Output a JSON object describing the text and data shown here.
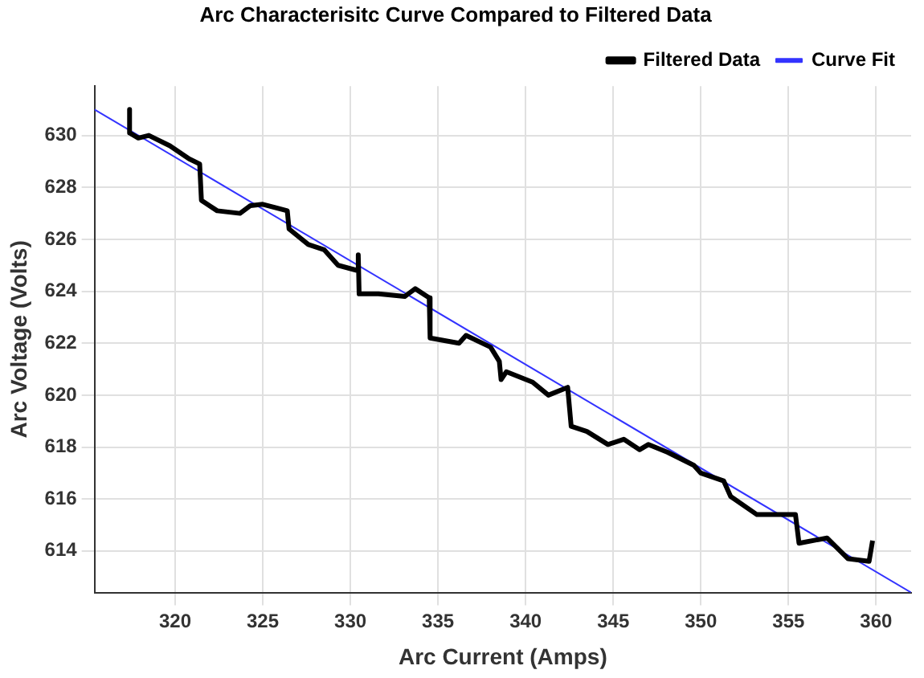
{
  "chart_data": {
    "type": "line",
    "title": "Arc Characterisitc Curve Compared to Filtered Data",
    "xlabel": "Arc Current (Amps)",
    "ylabel": "Arc Voltage (Volts)",
    "xlim": [
      315.4,
      362
    ],
    "xticks": [
      320,
      325,
      330,
      335,
      340,
      345,
      350,
      355,
      360
    ],
    "ylim": [
      612.4,
      631.9
    ],
    "yticks": [
      614,
      616,
      618,
      620,
      622,
      624,
      626,
      628,
      630
    ],
    "grid": true,
    "legend": "top right",
    "line_style": "solid",
    "series": [
      {
        "name": "Filtered Data",
        "color": "#000000",
        "x": [
          317.4,
          317.4,
          317.9,
          318.5,
          319.7,
          320.8,
          321.4,
          321.5,
          322.4,
          323.7,
          324.3,
          325.0,
          326.4,
          326.5,
          327.6,
          328.5,
          329.3,
          330.4,
          330.45,
          330.5,
          331.6,
          333.1,
          333.7,
          334.5,
          334.55,
          336.2,
          336.6,
          338.0,
          338.5,
          338.6,
          338.9,
          340.4,
          341.3,
          342.4,
          342.6,
          343.5,
          344.7,
          345.6,
          346.5,
          347.0,
          348.1,
          349.6,
          350.0,
          351.3,
          351.7,
          353.2,
          355.4,
          355.6,
          357.2,
          358.4,
          359.6,
          359.8
        ],
        "values": [
          631.0,
          630.1,
          629.9,
          630.0,
          629.6,
          629.1,
          628.9,
          627.5,
          627.1,
          627.0,
          627.3,
          627.35,
          627.1,
          626.4,
          625.8,
          625.6,
          625.0,
          624.8,
          625.4,
          623.9,
          623.9,
          623.8,
          624.1,
          623.75,
          622.2,
          622.0,
          622.3,
          621.85,
          621.3,
          620.6,
          620.9,
          620.5,
          620.0,
          620.3,
          618.8,
          618.6,
          618.1,
          618.3,
          617.9,
          618.1,
          617.8,
          617.3,
          617.0,
          616.7,
          616.1,
          615.4,
          615.4,
          614.3,
          614.5,
          613.7,
          613.6,
          614.4
        ]
      },
      {
        "name": "Curve Fit",
        "color": "#3333ff",
        "x": [
          315.4,
          362
        ],
        "values": [
          631.0,
          612.4
        ]
      }
    ]
  }
}
